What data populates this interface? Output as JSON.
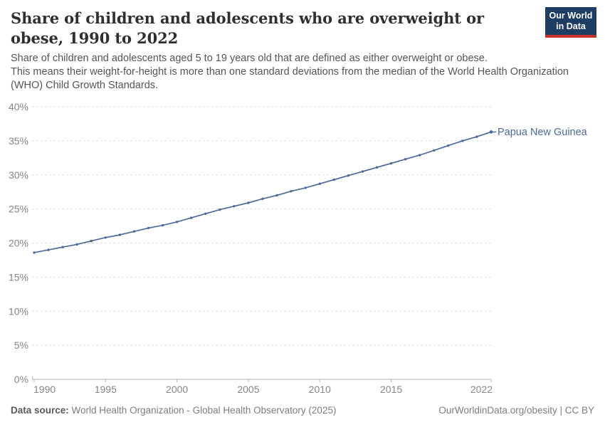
{
  "header": {
    "title": "Share of children and adolescents who are overweight or obese, 1990 to 2022",
    "subtitle_line1": "Share of children and adolescents aged 5 to 19 years old that are defined as either overweight or obese.",
    "subtitle_line2": "This means their weight-for-height is more than one standard deviations from the median of the World Health Organization (WHO) Child Growth Standards.",
    "logo": {
      "line1": "Our World",
      "line2": "in Data",
      "bg_color": "#1d3d63",
      "bar_color": "#c5332b"
    }
  },
  "chart_data": {
    "type": "line",
    "title": "Share of children and adolescents who are overweight or obese, 1990 to 2022",
    "xlabel": "",
    "ylabel": "",
    "xlim": [
      1990,
      2022
    ],
    "ylim": [
      0,
      40
    ],
    "grid": "horizontal dashed",
    "legend_position": "end-of-line label",
    "x_ticks": [
      1990,
      1995,
      2000,
      2005,
      2010,
      2015,
      2022
    ],
    "y_gridlines": [
      0,
      5,
      10,
      15,
      20,
      25,
      30,
      35,
      40
    ],
    "y_tick_suffix": "%",
    "series": [
      {
        "name": "Papua New Guinea",
        "color": "#4C6A9C",
        "years": [
          1990,
          1991,
          1992,
          1993,
          1994,
          1995,
          1996,
          1997,
          1998,
          1999,
          2000,
          2001,
          2002,
          2003,
          2004,
          2005,
          2006,
          2007,
          2008,
          2009,
          2010,
          2011,
          2012,
          2013,
          2014,
          2015,
          2016,
          2017,
          2018,
          2019,
          2020,
          2021,
          2022
        ],
        "values": [
          18.6,
          19.0,
          19.4,
          19.8,
          20.3,
          20.8,
          21.2,
          21.7,
          22.2,
          22.6,
          23.1,
          23.7,
          24.3,
          24.9,
          25.4,
          25.9,
          26.5,
          27.0,
          27.6,
          28.1,
          28.7,
          29.3,
          29.9,
          30.5,
          31.1,
          31.7,
          32.3,
          32.9,
          33.6,
          34.3,
          35.0,
          35.6,
          36.3
        ]
      }
    ],
    "entity_label": "Papua New Guinea"
  },
  "colors": {
    "gridline": "#dedede",
    "axis": "#b3b3b3",
    "tick_text": "#858585"
  },
  "footer": {
    "data_source_label": "Data source:",
    "data_source_text": " World Health Organization - Global Health Observatory (2025)",
    "right_text": "OurWorldinData.org/obesity | CC BY"
  }
}
